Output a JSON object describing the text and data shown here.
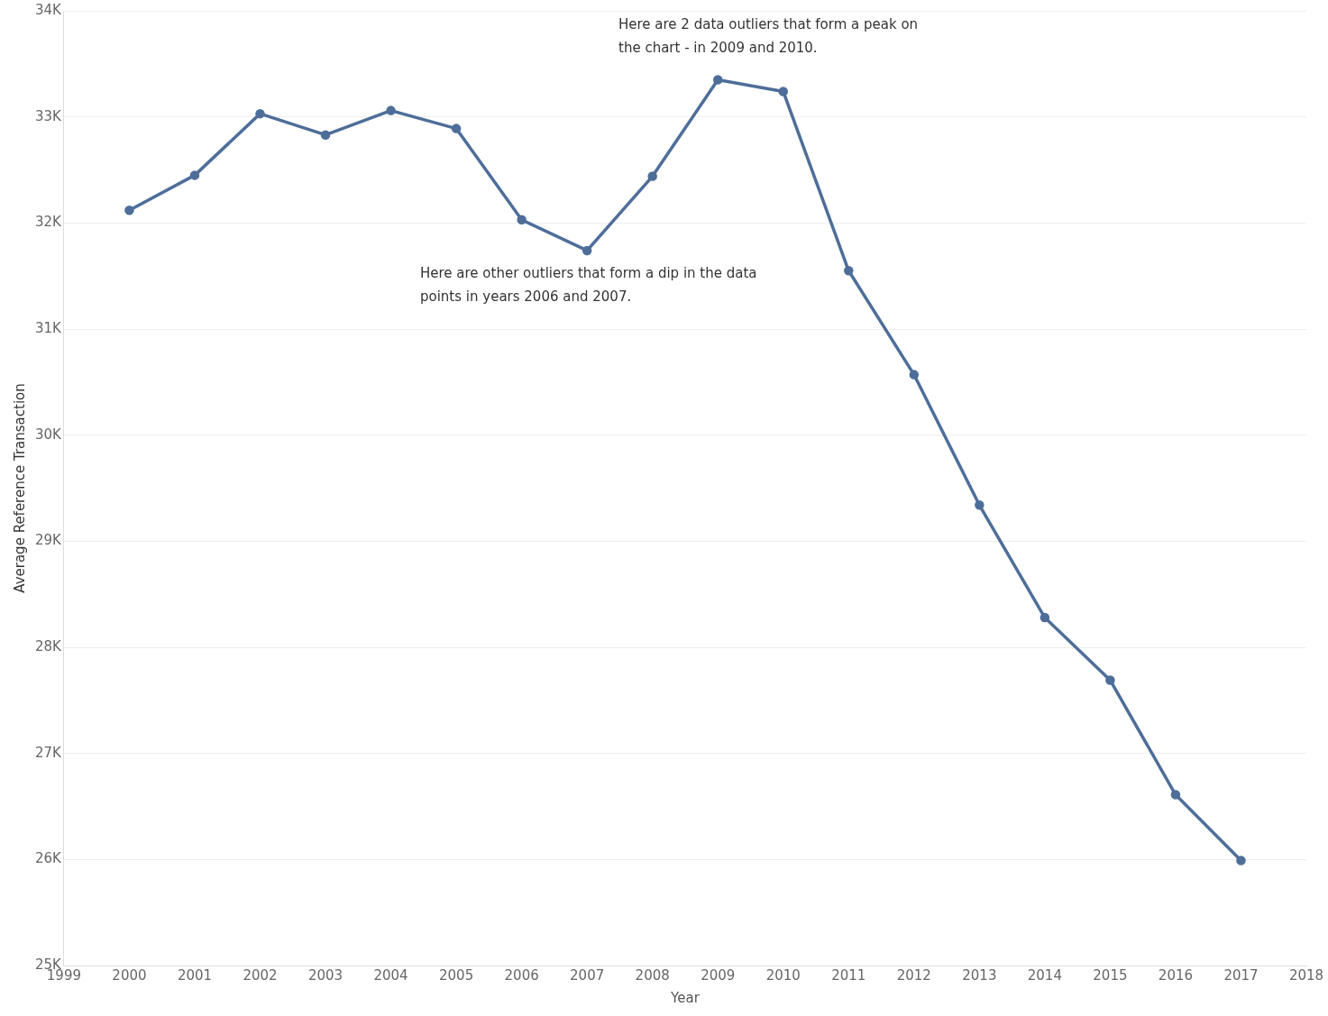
{
  "chart_data": {
    "type": "line",
    "xlabel": "Year",
    "ylabel": "Average Reference Transaction",
    "x": [
      2000,
      2001,
      2002,
      2003,
      2004,
      2005,
      2006,
      2007,
      2008,
      2009,
      2010,
      2011,
      2012,
      2013,
      2014,
      2015,
      2016,
      2017
    ],
    "series": [
      {
        "color": "#4e6e99",
        "values": [
          32120,
          32450,
          33030,
          32830,
          33060,
          32890,
          32030,
          31740,
          32440,
          33350,
          33240,
          31550,
          30570,
          29340,
          28280,
          27690,
          26610,
          25990
        ]
      }
    ],
    "xlim": [
      1999,
      2018
    ],
    "xticks": [
      1999,
      2000,
      2001,
      2002,
      2003,
      2004,
      2005,
      2006,
      2007,
      2008,
      2009,
      2010,
      2011,
      2012,
      2013,
      2014,
      2015,
      2016,
      2017,
      2018
    ],
    "ylim": [
      25000,
      34000
    ],
    "yticks": [
      {
        "value": 25000,
        "label": "25K"
      },
      {
        "value": 26000,
        "label": "26K"
      },
      {
        "value": 27000,
        "label": "27K"
      },
      {
        "value": 28000,
        "label": "28K"
      },
      {
        "value": 29000,
        "label": "29K"
      },
      {
        "value": 30000,
        "label": "30K"
      },
      {
        "value": 31000,
        "label": "31K"
      },
      {
        "value": 32000,
        "label": "32K"
      },
      {
        "value": 33000,
        "label": "33K"
      },
      {
        "value": 34000,
        "label": "34K"
      }
    ],
    "grid": "y",
    "legend": false,
    "marker": "circle",
    "line_style": "solid",
    "annotations": [
      "Here are 2 data outliers that form a peak on the chart - in 2009 and 2010.",
      "Here are other outliers that form a dip in the data points in years 2006 and  2007."
    ]
  }
}
